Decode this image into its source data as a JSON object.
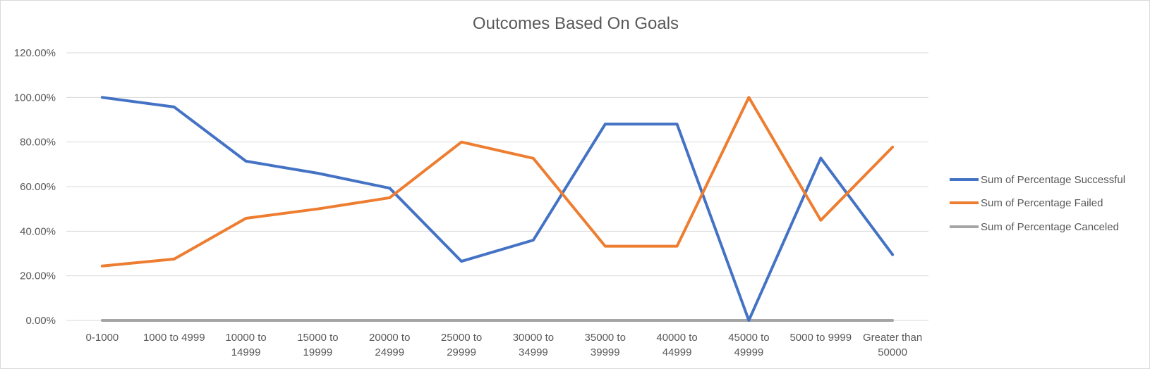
{
  "chart_data": {
    "type": "line",
    "title": "Outcomes Based On Goals",
    "categories": [
      [
        "0-1000"
      ],
      [
        "1000 to 4999"
      ],
      [
        "10000 to",
        "14999"
      ],
      [
        "15000 to",
        "19999"
      ],
      [
        "20000 to",
        "24999"
      ],
      [
        "25000 to",
        "29999"
      ],
      [
        "30000 to",
        "34999"
      ],
      [
        "35000 to",
        "39999"
      ],
      [
        "40000 to",
        "44999"
      ],
      [
        "45000 to",
        "49999"
      ],
      [
        "5000 to 9999"
      ],
      [
        "Greater than",
        "50000"
      ]
    ],
    "y_ticks": [
      "0.00%",
      "20.00%",
      "40.00%",
      "60.00%",
      "80.00%",
      "100.00%",
      "120.00%"
    ],
    "ylim": [
      0,
      120
    ],
    "grid": true,
    "legend_position": "right",
    "series": [
      {
        "name": "Sum of Percentage Successful",
        "color": "#4472c4",
        "values": [
          100,
          95.7,
          71.4,
          66,
          59.3,
          26.5,
          36,
          88,
          88,
          0,
          72.8,
          29.5
        ]
      },
      {
        "name": "Sum of Percentage Failed",
        "color": "#ed7d31",
        "values": [
          24.4,
          27.5,
          45.8,
          50,
          55,
          80,
          72.7,
          33.3,
          33.3,
          100,
          44.9,
          77.7
        ]
      },
      {
        "name": "Sum of Percentage Canceled",
        "color": "#a5a5a5",
        "values": [
          0,
          0,
          0,
          0,
          0,
          0,
          0,
          0,
          0,
          0,
          0,
          0
        ]
      }
    ]
  }
}
